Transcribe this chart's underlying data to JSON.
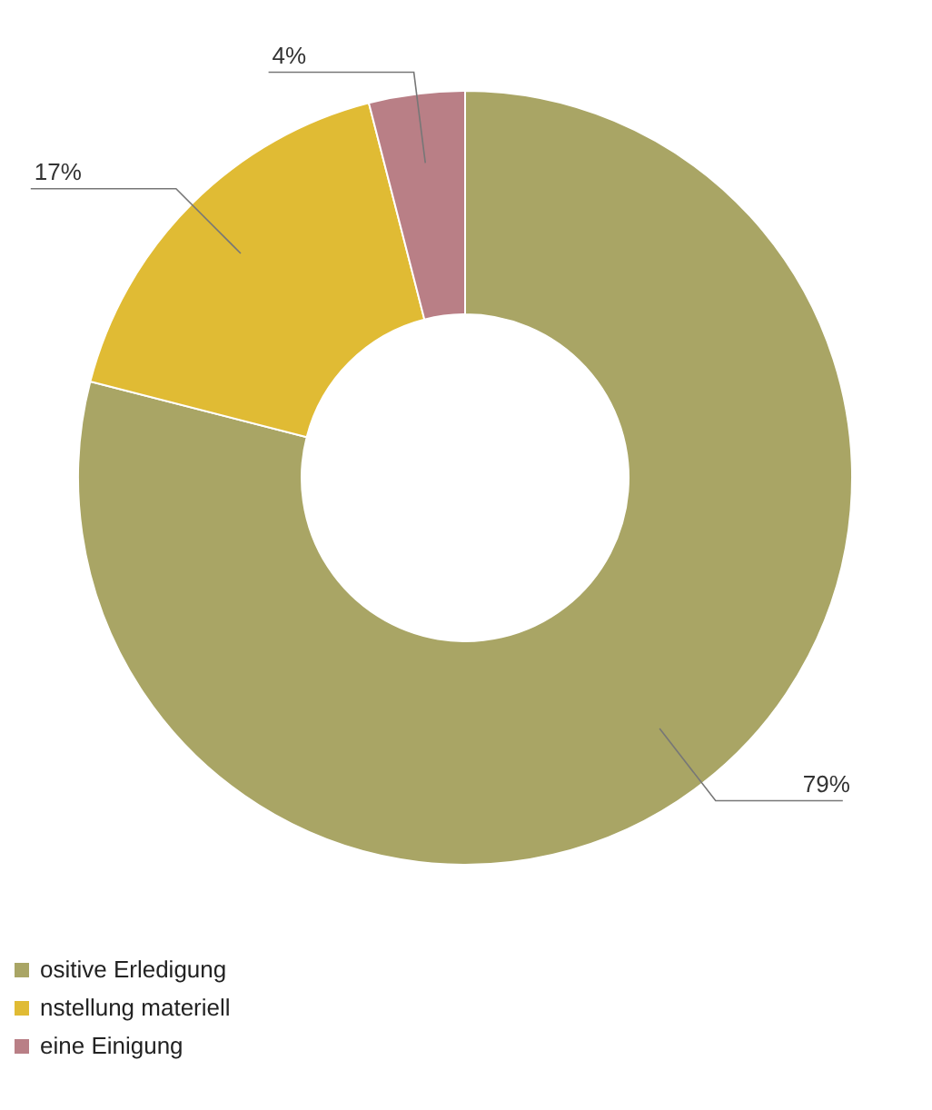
{
  "chart_data": {
    "type": "donut",
    "categories": [
      "ositive Erledigung",
      "nstellung materiell",
      "eine Einigung"
    ],
    "values": [
      79,
      17,
      4
    ],
    "colors": [
      "#a9a565",
      "#e0bb34",
      "#b97f86"
    ],
    "value_labels": [
      "79%",
      "17%",
      "4%"
    ],
    "legend": "bottom left"
  }
}
